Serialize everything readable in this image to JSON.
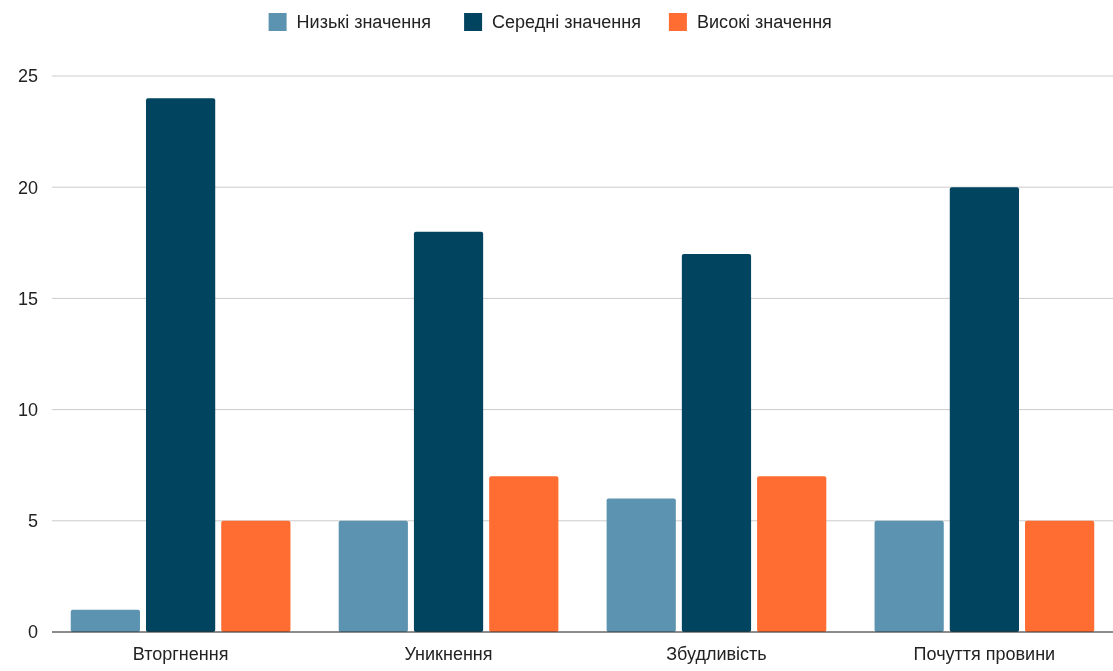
{
  "chart_data": {
    "type": "bar",
    "categories": [
      "Вторгнення",
      "Уникнення",
      "Збудливість",
      "Почуття провини"
    ],
    "series": [
      {
        "name": "Низькі значення",
        "color": "#5b93b0",
        "values": [
          1,
          5,
          6,
          5
        ]
      },
      {
        "name": "Середні значення",
        "color": "#01445f",
        "values": [
          24,
          18,
          17,
          20
        ]
      },
      {
        "name": "Високі значення",
        "color": "#ff6d33",
        "values": [
          5,
          7,
          7,
          5
        ]
      }
    ],
    "ylim": [
      0,
      25
    ],
    "yticks": [
      0,
      5,
      10,
      15,
      20,
      25
    ],
    "grid": "y",
    "legend": "top"
  }
}
